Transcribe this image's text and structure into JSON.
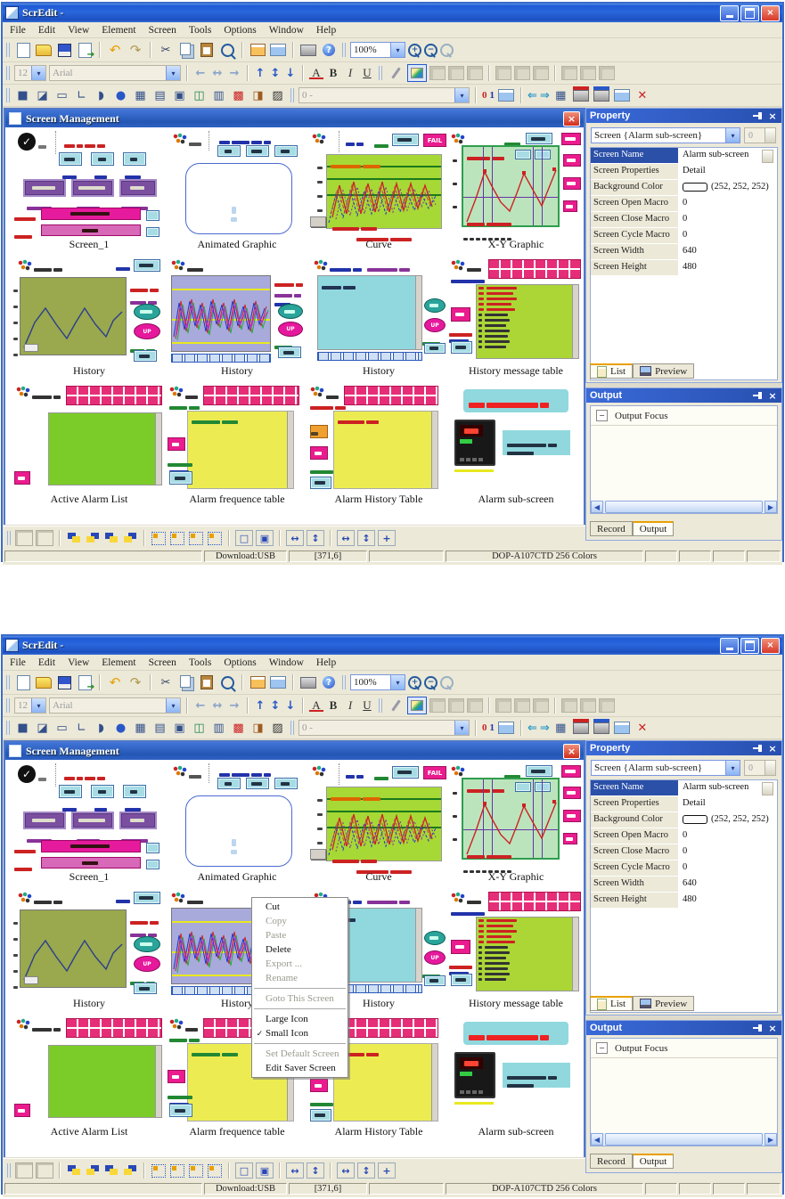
{
  "window": {
    "title": "ScrEdit -",
    "menus": [
      "File",
      "Edit",
      "View",
      "Element",
      "Screen",
      "Tools",
      "Options",
      "Window",
      "Help"
    ]
  },
  "toolbar": {
    "zoom_value": "100%",
    "font_size": "12",
    "font_name": "Arial",
    "element_state": "0 -"
  },
  "screen_management": {
    "title": "Screen Management",
    "thumbnails": [
      {
        "label": "Screen_1"
      },
      {
        "label": "Animated Graphic"
      },
      {
        "label": "Curve"
      },
      {
        "label": "X-Y Graphic"
      },
      {
        "label": "History"
      },
      {
        "label": "History"
      },
      {
        "label": "History"
      },
      {
        "label": "History message table"
      },
      {
        "label": "Active Alarm List"
      },
      {
        "label": "Alarm frequence table"
      },
      {
        "label": "Alarm History Table"
      },
      {
        "label": "Alarm sub-screen"
      }
    ]
  },
  "decor": {
    "fail": "FAIL",
    "up": "UP"
  },
  "property_panel": {
    "title": "Property",
    "selector": "Screen {Alarm sub-screen}",
    "spinner": "0",
    "rows": [
      {
        "label": "Screen Name",
        "value": "Alarm sub-screen"
      },
      {
        "label": "Screen Properties",
        "value": "Detail"
      },
      {
        "label": "Background Color",
        "value": "(252, 252, 252)"
      },
      {
        "label": "Screen Open Macro",
        "value": "0"
      },
      {
        "label": "Screen Close Macro",
        "value": "0"
      },
      {
        "label": "Screen Cycle Macro",
        "value": "0"
      },
      {
        "label": "Screen Width",
        "value": "640"
      },
      {
        "label": "Screen Height",
        "value": "480"
      }
    ],
    "tabs": [
      "List",
      "Preview"
    ]
  },
  "output_panel": {
    "title": "Output",
    "focus_label": "Output Focus",
    "tabs": [
      "Record",
      "Output"
    ]
  },
  "status_bar": {
    "download": "Download:USB",
    "coords": "[371,6]",
    "device": "DOP-A107CTD 256 Colors"
  },
  "context_menu": {
    "items": [
      {
        "label": "Cut",
        "enabled": true
      },
      {
        "label": "Copy",
        "enabled": false
      },
      {
        "label": "Paste",
        "enabled": false
      },
      {
        "label": "Delete",
        "enabled": true
      },
      {
        "label": "Export ...",
        "enabled": false
      },
      {
        "label": "Rename",
        "enabled": false
      },
      {
        "sep": true
      },
      {
        "label": "Goto This Screen",
        "enabled": false
      },
      {
        "sep": true
      },
      {
        "label": "Large Icon",
        "enabled": true
      },
      {
        "label": "Small Icon",
        "enabled": true,
        "checked": true
      },
      {
        "sep": true
      },
      {
        "label": "Set Default Screen",
        "enabled": false
      },
      {
        "label": "Edit Saver Screen",
        "enabled": true
      }
    ]
  },
  "colors": {
    "accent_blue": "#2456b4",
    "magenta": "#e6189c",
    "lime": "#abd636",
    "yellow": "#ecec52"
  }
}
